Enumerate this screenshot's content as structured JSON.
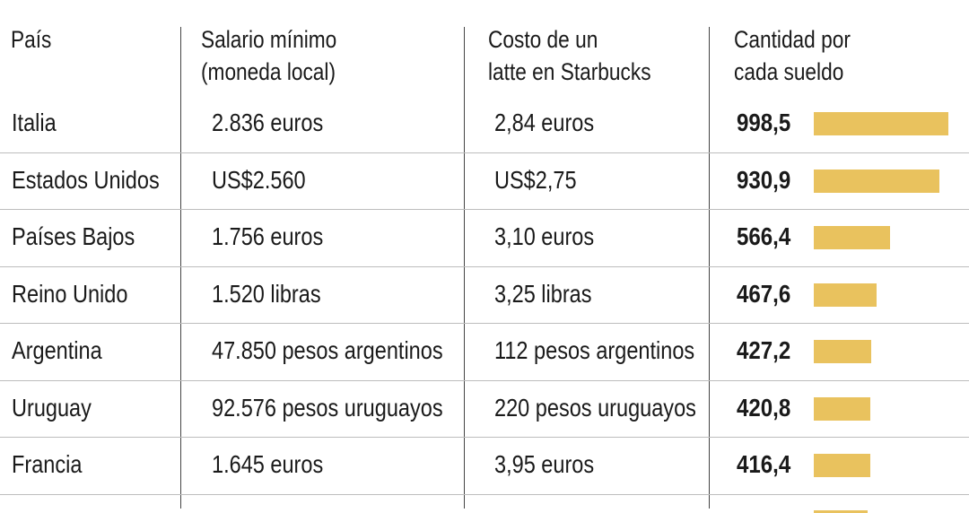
{
  "headers": {
    "country": [
      "País"
    ],
    "wage": [
      "Salario mínimo",
      "(moneda local)"
    ],
    "latte": [
      "Costo de un",
      "latte en Starbucks"
    ],
    "count": [
      "Cantidad por",
      "cada sueldo"
    ]
  },
  "colors": {
    "bar": "#e9c25e",
    "divider": "#444444",
    "row_line": "#bdbdbd"
  },
  "chart_data": {
    "type": "table",
    "columns": [
      "País",
      "Salario mínimo (moneda local)",
      "Costo de un latte en Starbucks",
      "Cantidad por cada sueldo"
    ],
    "rows": [
      {
        "country": "Italia",
        "wage": "2.836 euros",
        "latte": "2,84 euros",
        "count_label": "998,5",
        "count": 998.5
      },
      {
        "country": "Estados Unidos",
        "wage": "US$2.560",
        "latte": "US$2,75",
        "count_label": "930,9",
        "count": 930.9
      },
      {
        "country": "Países Bajos",
        "wage": "1.756 euros",
        "latte": "3,10 euros",
        "count_label": "566,4",
        "count": 566.4
      },
      {
        "country": "Reino Unido",
        "wage": "1.520 libras",
        "latte": "3,25 libras",
        "count_label": "467,6",
        "count": 467.6
      },
      {
        "country": "Argentina",
        "wage": "47.850 pesos argentinos",
        "latte": "112 pesos argentinos",
        "count_label": "427,2",
        "count": 427.2
      },
      {
        "country": "Uruguay",
        "wage": "92.576 pesos uruguayos",
        "latte": "220 pesos uruguayos",
        "count_label": "420,8",
        "count": 420.8
      },
      {
        "country": "Francia",
        "wage": "1.645 euros",
        "latte": "3,95 euros",
        "count_label": "416,4",
        "count": 416.4
      }
    ],
    "bar_max": 998.5
  }
}
